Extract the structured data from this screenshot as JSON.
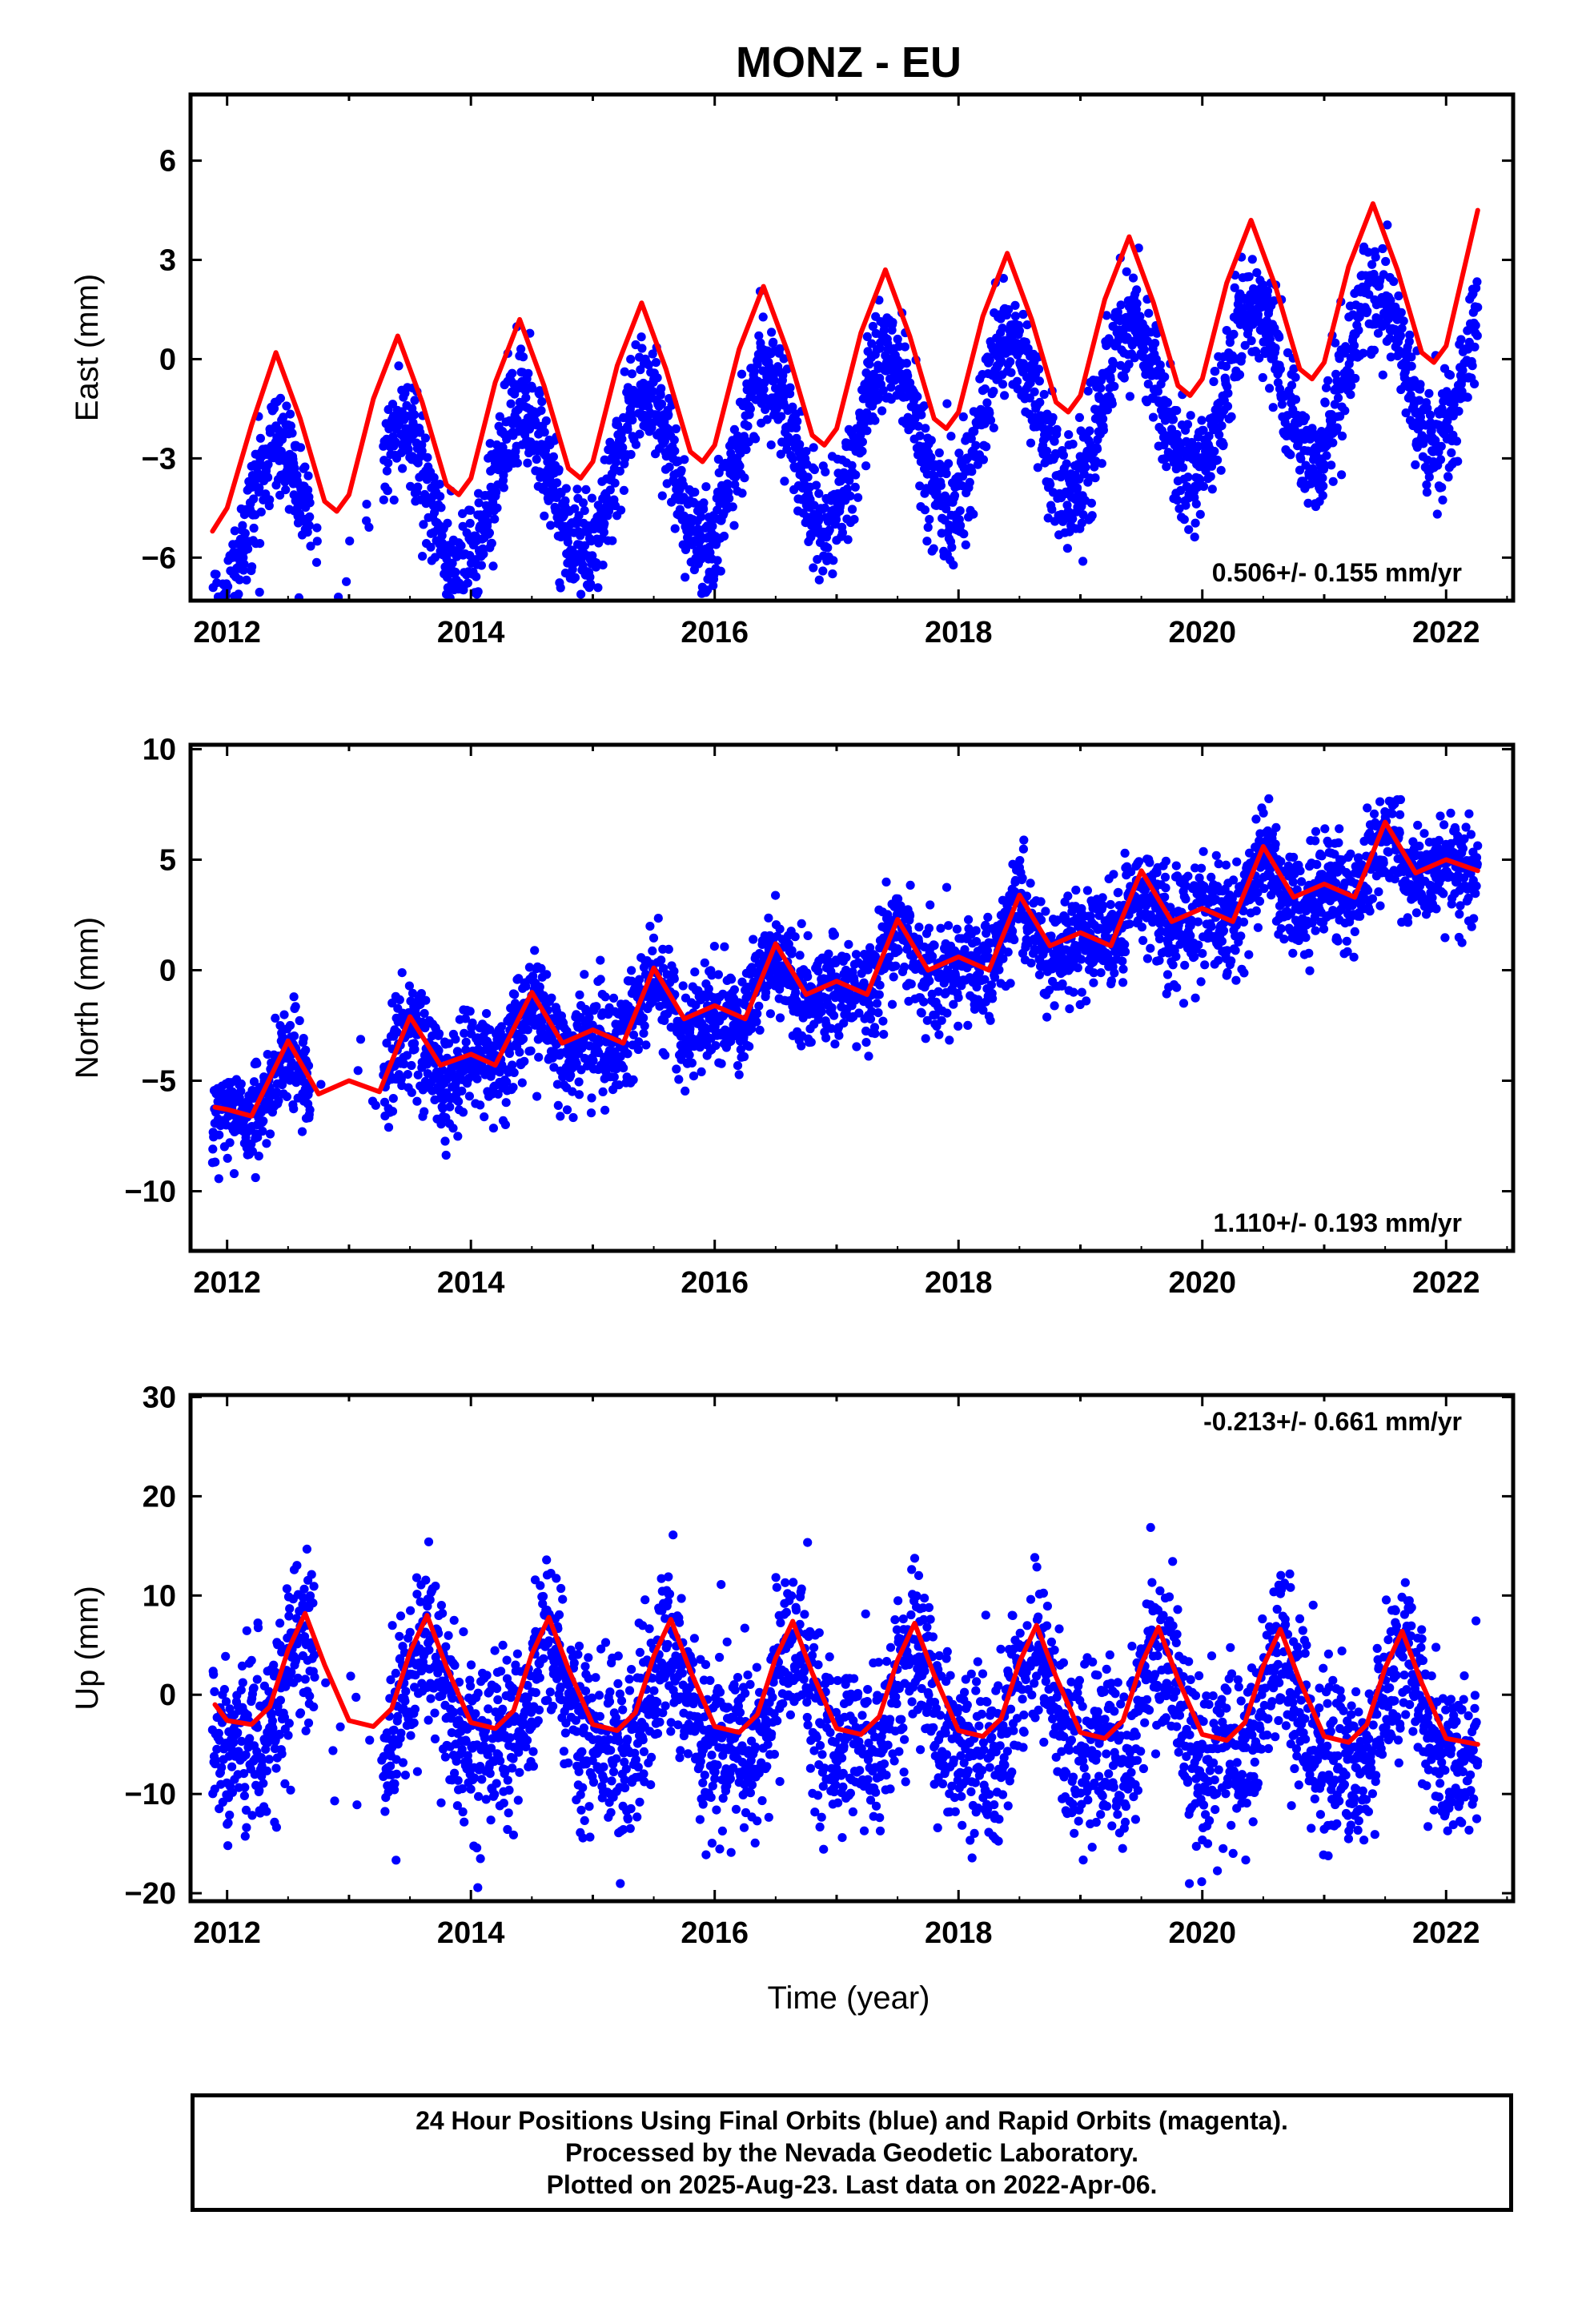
{
  "title": "MONZ - EU",
  "xlabel": "Time (year)",
  "colors": {
    "points": "#0000ff",
    "model": "#ff0000",
    "frame": "#000000"
  },
  "footer": {
    "line1": "24 Hour Positions Using Final Orbits (blue) and Rapid Orbits (magenta).",
    "line2": "Processed by the Nevada Geodetic Laboratory.",
    "line3": "Plotted on 2025-Aug-23. Last data on 2022-Apr-06."
  },
  "chart_data": [
    {
      "type": "scatter",
      "name": "east",
      "ylabel": "East (mm)",
      "rate_label": "0.506+/- 0.155 mm/yr",
      "rate_position": "bottom-right",
      "xlim": [
        2011.7,
        2022.55
      ],
      "ylim": [
        -7.3,
        8.0
      ],
      "xticks": [
        2012,
        2014,
        2016,
        2018,
        2020,
        2022
      ],
      "yticks": [
        -6,
        -3,
        0,
        3,
        6
      ],
      "data_start": 2011.88,
      "data_end": 2022.26,
      "gap": [
        2012.68,
        2013.28
      ],
      "trend_mm_per_yr": 0.506,
      "model_at_start": -5.2,
      "annual_amplitude": 2.45,
      "annual_peak_phase": 0.42,
      "semiannual_amplitude": 0.0,
      "scatter_sd": 0.85,
      "model_curve": {
        "x": [
          2011.88,
          2012.0,
          2012.2,
          2012.4,
          2012.6,
          2012.8,
          2012.9,
          2013.0,
          2013.2,
          2013.4,
          2013.6,
          2013.8,
          2013.9,
          2014.0,
          2014.2,
          2014.4,
          2014.6,
          2014.8,
          2014.9,
          2015.0,
          2015.2,
          2015.4,
          2015.6,
          2015.8,
          2015.9,
          2016.0,
          2016.2,
          2016.4,
          2016.6,
          2016.8,
          2016.9,
          2017.0,
          2017.2,
          2017.4,
          2017.6,
          2017.8,
          2017.9,
          2018.0,
          2018.2,
          2018.4,
          2018.6,
          2018.8,
          2018.9,
          2019.0,
          2019.2,
          2019.4,
          2019.6,
          2019.8,
          2019.9,
          2020.0,
          2020.2,
          2020.4,
          2020.6,
          2020.8,
          2020.9,
          2021.0,
          2021.2,
          2021.4,
          2021.6,
          2021.8,
          2021.9,
          2022.0,
          2022.26
        ],
        "y": [
          -5.2,
          -4.5,
          -2.0,
          0.2,
          -1.8,
          -4.3,
          -4.6,
          -4.1,
          -1.2,
          0.7,
          -1.3,
          -3.8,
          -4.1,
          -3.6,
          -0.7,
          1.2,
          -0.8,
          -3.3,
          -3.6,
          -3.1,
          -0.2,
          1.7,
          -0.3,
          -2.8,
          -3.1,
          -2.6,
          0.3,
          2.2,
          0.2,
          -2.3,
          -2.6,
          -2.1,
          0.8,
          2.7,
          0.7,
          -1.8,
          -2.1,
          -1.6,
          1.3,
          3.2,
          1.2,
          -1.3,
          -1.6,
          -1.1,
          1.8,
          3.7,
          1.7,
          -0.8,
          -1.1,
          -0.6,
          2.3,
          4.2,
          2.2,
          -0.3,
          -0.6,
          -0.1,
          2.8,
          4.7,
          2.7,
          0.2,
          -0.1,
          0.4,
          4.5
        ]
      }
    },
    {
      "type": "scatter",
      "name": "north",
      "ylabel": "North (mm)",
      "rate_label": "1.110+/- 0.193 mm/yr",
      "rate_position": "bottom-right",
      "xlim": [
        2011.7,
        2022.55
      ],
      "ylim": [
        -12.7,
        10.2
      ],
      "xticks": [
        2012,
        2014,
        2016,
        2018,
        2020,
        2022
      ],
      "yticks": [
        -10,
        -5,
        0,
        5,
        10
      ],
      "data_start": 2011.88,
      "data_end": 2022.26,
      "gap": [
        2012.68,
        2013.28
      ],
      "trend_mm_per_yr": 1.11,
      "model_at_start": -6.2,
      "annual_amplitude": 0.9,
      "annual_peak_phase": 0.5,
      "semiannual_amplitude": 0.7,
      "scatter_sd": 1.15,
      "model_curve": {
        "x": [
          2011.9,
          2012.0,
          2012.2,
          2012.5,
          2012.75,
          2013.0,
          2013.25,
          2013.5,
          2013.75,
          2014.0,
          2014.2,
          2014.5,
          2014.75,
          2015.0,
          2015.25,
          2015.5,
          2015.75,
          2016.0,
          2016.25,
          2016.5,
          2016.75,
          2017.0,
          2017.25,
          2017.5,
          2017.75,
          2018.0,
          2018.25,
          2018.5,
          2018.75,
          2019.0,
          2019.25,
          2019.5,
          2019.75,
          2020.0,
          2020.25,
          2020.5,
          2020.75,
          2021.0,
          2021.25,
          2021.5,
          2021.75,
          2022.0,
          2022.26
        ],
        "y": [
          -6.2,
          -6.3,
          -6.6,
          -3.2,
          -5.6,
          -5.0,
          -5.5,
          -2.1,
          -4.3,
          -3.8,
          -4.3,
          -1.0,
          -3.3,
          -2.7,
          -3.3,
          0.1,
          -2.2,
          -1.6,
          -2.2,
          1.2,
          -1.1,
          -0.5,
          -1.1,
          2.3,
          0.0,
          0.6,
          0.0,
          3.4,
          1.1,
          1.7,
          1.1,
          4.5,
          2.2,
          2.8,
          2.2,
          5.6,
          3.3,
          3.9,
          3.3,
          6.7,
          4.4,
          5.0,
          4.5
        ]
      }
    },
    {
      "type": "scatter",
      "name": "up",
      "ylabel": "Up (mm)",
      "rate_label": "-0.213+/- 0.661 mm/yr",
      "rate_position": "top-right",
      "xlim": [
        2011.7,
        2022.55
      ],
      "ylim": [
        -20.8,
        30.2
      ],
      "xticks": [
        2012,
        2014,
        2016,
        2018,
        2020,
        2022
      ],
      "yticks": [
        -20,
        -10,
        0,
        10,
        20,
        30
      ],
      "data_start": 2011.88,
      "data_end": 2022.26,
      "gap": [
        2012.72,
        2013.28
      ],
      "trend_mm_per_yr": -0.213,
      "model_at_start": -1.0,
      "annual_amplitude": 5.0,
      "annual_peak_phase": 0.64,
      "semiannual_amplitude": 2.2,
      "scatter_sd": 4.3,
      "model_curve": {
        "x": [
          2011.9,
          2012.0,
          2012.2,
          2012.35,
          2012.5,
          2012.64,
          2012.8,
          2013.0,
          2013.2,
          2013.35,
          2013.5,
          2013.64,
          2013.8,
          2014.0,
          2014.2,
          2014.35,
          2014.5,
          2014.64,
          2014.8,
          2015.0,
          2015.2,
          2015.35,
          2015.5,
          2015.64,
          2015.8,
          2016.0,
          2016.2,
          2016.35,
          2016.5,
          2016.64,
          2016.8,
          2017.0,
          2017.2,
          2017.35,
          2017.5,
          2017.64,
          2017.8,
          2018.0,
          2018.2,
          2018.35,
          2018.5,
          2018.64,
          2018.8,
          2019.0,
          2019.2,
          2019.35,
          2019.5,
          2019.64,
          2019.8,
          2020.0,
          2020.2,
          2020.35,
          2020.5,
          2020.64,
          2020.8,
          2021.0,
          2021.2,
          2021.35,
          2021.5,
          2021.64,
          2021.8,
          2022.0,
          2022.26
        ],
        "y": [
          -1.0,
          -2.6,
          -3.0,
          -1.2,
          4.5,
          8.2,
          3.0,
          -2.6,
          -3.2,
          -1.4,
          4.3,
          8.0,
          2.8,
          -2.8,
          -3.4,
          -1.6,
          4.1,
          7.8,
          2.6,
          -3.0,
          -3.6,
          -1.8,
          3.9,
          7.6,
          2.4,
          -3.2,
          -3.8,
          -2.0,
          3.7,
          7.4,
          2.2,
          -3.4,
          -4.0,
          -2.2,
          3.5,
          7.2,
          2.0,
          -3.6,
          -4.2,
          -2.4,
          3.3,
          7.0,
          1.8,
          -3.8,
          -4.4,
          -2.6,
          3.1,
          6.8,
          1.6,
          -4.0,
          -4.6,
          -2.8,
          2.9,
          6.6,
          1.4,
          -4.2,
          -4.8,
          -3.0,
          2.7,
          6.4,
          1.2,
          -4.4,
          -5.0
        ]
      }
    }
  ]
}
